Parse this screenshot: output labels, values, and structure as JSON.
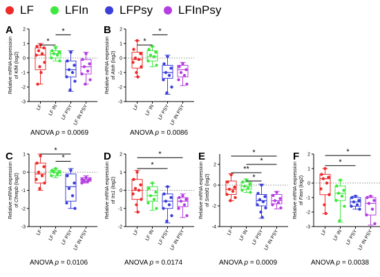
{
  "legend": [
    {
      "label": "LF",
      "color": "#ee2a2a"
    },
    {
      "label": "LFIn",
      "color": "#3fe83f"
    },
    {
      "label": "LFPsy",
      "color": "#3b3fd9"
    },
    {
      "label": "LFInPsy",
      "color": "#b43ee0"
    }
  ],
  "groups": [
    "LF",
    "LF IN",
    "LF PSY",
    "LF IN PSY"
  ],
  "colors": [
    "#ee2a2a",
    "#3fe83f",
    "#3b3fd9",
    "#b43ee0"
  ],
  "chart_data": [
    {
      "type": "box",
      "panel": "A",
      "ylabel_line1": "Relative mRNA expression",
      "ylabel_pre": "of ",
      "gene": "Klf4",
      "ylabel_post": " (log2)",
      "yticks": [
        -3,
        -2,
        -1,
        0,
        1,
        2
      ],
      "ylim": [
        -3,
        2
      ],
      "categories": [
        "LF",
        "LF IN",
        "LF PSY",
        "LF IN PSY"
      ],
      "boxes": [
        {
          "min": -1.8,
          "q1": -0.8,
          "median": 0.2,
          "q3": 0.7,
          "max": 1.0,
          "points": [
            0.9,
            0.8,
            0.7,
            0.5,
            0.3,
            0.2,
            -0.3,
            -0.6,
            -1.0,
            -1.8
          ]
        },
        {
          "min": -0.2,
          "q1": 0.0,
          "median": 0.3,
          "q3": 0.5,
          "max": 0.8,
          "points": [
            0.7,
            0.5,
            0.4,
            0.3,
            0.2,
            0.0,
            -0.2
          ]
        },
        {
          "min": -2.3,
          "q1": -1.3,
          "median": -0.8,
          "q3": -0.2,
          "max": 0.5,
          "points": [
            0.4,
            -0.2,
            -0.5,
            -0.8,
            -1.0,
            -1.3,
            -1.6,
            -2.2
          ]
        },
        {
          "min": -1.8,
          "q1": -1.1,
          "median": -0.6,
          "q3": -0.1,
          "max": 0.4,
          "points": [
            0.3,
            -0.1,
            -0.4,
            -0.6,
            -0.9,
            -1.1,
            -1.5,
            -1.8
          ]
        }
      ],
      "sig": [
        {
          "from": 2,
          "to": 3,
          "label": "*",
          "y": 1.6
        },
        {
          "from": 1,
          "to": 2,
          "label": "*",
          "y": 0.9
        }
      ],
      "anova_p": "0.0069"
    },
    {
      "type": "box",
      "panel": "B",
      "ylabel_line1": "Relative mRNA expression",
      "ylabel_pre": "of ",
      "gene": "Atoh",
      "ylabel_post": " (log2)",
      "yticks": [
        -3,
        -2,
        -1,
        0,
        1,
        2
      ],
      "ylim": [
        -3,
        2
      ],
      "categories": [
        "LF",
        "LF IN",
        "LF PSY",
        "LF IN PSY"
      ],
      "boxes": [
        {
          "min": -1.3,
          "q1": -0.7,
          "median": -0.1,
          "q3": 0.4,
          "max": 1.2,
          "points": [
            1.2,
            0.6,
            0.3,
            0.0,
            -0.1,
            -0.3,
            -0.6,
            -1.0,
            -1.3
          ]
        },
        {
          "min": -0.6,
          "q1": -0.2,
          "median": 0.1,
          "q3": 0.5,
          "max": 0.8,
          "points": [
            0.8,
            0.6,
            0.4,
            0.2,
            0.1,
            -0.2,
            -0.5
          ]
        },
        {
          "min": -2.5,
          "q1": -1.4,
          "median": -1.0,
          "q3": -0.5,
          "max": 0.2,
          "points": [
            0.1,
            -0.4,
            -0.7,
            -1.0,
            -1.2,
            -1.5,
            -2.0,
            -2.4
          ]
        },
        {
          "min": -1.9,
          "q1": -1.3,
          "median": -0.8,
          "q3": -0.5,
          "max": -0.3,
          "points": [
            -0.4,
            -0.6,
            -0.8,
            -1.0,
            -1.2,
            -1.5,
            -1.8
          ]
        }
      ],
      "sig": [
        {
          "from": 2,
          "to": 3,
          "label": "*",
          "y": 1.6
        },
        {
          "from": 1,
          "to": 2,
          "label": "*",
          "y": 0.9
        }
      ],
      "anova_p": "0.0086"
    },
    {
      "type": "box",
      "panel": "C",
      "ylabel_line1": "Relative mRNA expression",
      "ylabel_pre": "of ",
      "gene": "Chrepb",
      "ylabel_post": " (log2)",
      "yticks": [
        -3,
        -2,
        -1,
        0,
        1
      ],
      "ylim": [
        -3,
        1
      ],
      "categories": [
        "LF",
        "LF IN",
        "LF PSY",
        "LF IN PSY"
      ],
      "boxes": [
        {
          "min": -1.0,
          "q1": -0.6,
          "median": -0.1,
          "q3": 0.5,
          "max": 1.0,
          "points": [
            0.9,
            0.5,
            0.3,
            0.0,
            -0.2,
            -0.4,
            -0.6,
            -0.9
          ]
        },
        {
          "min": -0.3,
          "q1": -0.2,
          "median": 0.0,
          "q3": 0.1,
          "max": 0.2,
          "points": [
            0.2,
            0.1,
            0.0,
            0.0,
            -0.1,
            -0.2
          ]
        },
        {
          "min": -2.0,
          "q1": -1.6,
          "median": -0.8,
          "q3": -0.1,
          "max": 0.2,
          "points": [
            0.1,
            -0.2,
            -0.6,
            -0.9,
            -1.3,
            -1.7,
            -2.0
          ]
        },
        {
          "min": -0.6,
          "q1": -0.5,
          "median": -0.4,
          "q3": -0.3,
          "max": -0.2,
          "points": [
            -0.3,
            -0.4,
            -0.4,
            -0.5,
            -0.5,
            -0.6
          ]
        }
      ],
      "sig": [
        {
          "from": 1,
          "to": 3,
          "label": "*",
          "y": 1.0
        },
        {
          "from": 2,
          "to": 3,
          "label": "*",
          "y": 0.6
        }
      ],
      "anova_p": "0.0106"
    },
    {
      "type": "box",
      "panel": "D",
      "ylabel_line1": "Relative mRNA expression",
      "ylabel_pre": "of ",
      "gene": "Irs1",
      "ylabel_post": " (log2)",
      "yticks": [
        -2,
        -1,
        0,
        1,
        2
      ],
      "ylim": [
        -2,
        2
      ],
      "categories": [
        "LF",
        "LF IN",
        "LF PSY",
        "LF IN PSY"
      ],
      "boxes": [
        {
          "min": -1.2,
          "q1": -0.5,
          "median": 0.0,
          "q3": 0.6,
          "max": 1.1,
          "points": [
            1.0,
            0.6,
            0.3,
            0.1,
            0.0,
            -0.2,
            -0.5,
            -0.8,
            -1.2
          ]
        },
        {
          "min": -1.1,
          "q1": -0.6,
          "median": -0.3,
          "q3": 0.2,
          "max": 0.4,
          "points": [
            0.4,
            0.1,
            -0.1,
            -0.3,
            -0.5,
            -0.7,
            -1.0
          ]
        },
        {
          "min": -1.8,
          "q1": -1.0,
          "median": -0.6,
          "q3": -0.2,
          "max": 0.2,
          "points": [
            0.2,
            -0.2,
            -0.4,
            -0.6,
            -0.8,
            -1.0,
            -1.4,
            -1.7
          ]
        },
        {
          "min": -1.5,
          "q1": -0.9,
          "median": -0.6,
          "q3": -0.4,
          "max": -0.2,
          "points": [
            -0.3,
            -0.4,
            -0.5,
            -0.6,
            -0.8,
            -1.0,
            -1.4
          ]
        }
      ],
      "sig": [
        {
          "from": 1,
          "to": 4,
          "label": "*",
          "y": 1.8
        },
        {
          "from": 1,
          "to": 3,
          "label": "*",
          "y": 1.2
        }
      ],
      "anova_p": "0.0174"
    },
    {
      "type": "box",
      "panel": "E",
      "ylabel_line1": "Relative mRNA expression",
      "ylabel_pre": "of ",
      "gene": "Srebf1",
      "ylabel_post": " (log2)",
      "yticks": [
        -4,
        -2,
        0,
        2
      ],
      "ylim": [
        -4,
        3
      ],
      "categories": [
        "LF",
        "LF IN",
        "LF PSY",
        "LF IN PSY"
      ],
      "boxes": [
        {
          "min": -1.5,
          "q1": -0.9,
          "median": -0.4,
          "q3": 0.4,
          "max": 1.1,
          "points": [
            1.0,
            0.3,
            -0.2,
            -0.4,
            -0.6,
            -0.9,
            -1.2,
            -1.5
          ]
        },
        {
          "min": -0.7,
          "q1": -0.4,
          "median": -0.1,
          "q3": 0.3,
          "max": 0.6,
          "points": [
            0.5,
            0.3,
            0.1,
            -0.1,
            -0.3,
            -0.5,
            -0.7
          ]
        },
        {
          "min": -3.2,
          "q1": -2.0,
          "median": -1.5,
          "q3": -0.9,
          "max": 0.1,
          "points": [
            0.0,
            -0.8,
            -1.1,
            -1.4,
            -1.6,
            -1.9,
            -2.2,
            -2.6,
            -3.1
          ]
        },
        {
          "min": -2.3,
          "q1": -1.8,
          "median": -1.5,
          "q3": -0.9,
          "max": -0.6,
          "points": [
            -0.7,
            -1.0,
            -1.3,
            -1.5,
            -1.7,
            -1.9,
            -2.2
          ]
        }
      ],
      "sig": [
        {
          "from": 1,
          "to": 4,
          "label": "*",
          "y": 2.8
        },
        {
          "from": 2,
          "to": 4,
          "label": "*",
          "y": 2.0
        },
        {
          "from": 1,
          "to": 3,
          "label": "**",
          "y": 1.2
        },
        {
          "from": 2,
          "to": 3,
          "label": "*",
          "y": 0.4
        }
      ],
      "anova_p": "0.0009"
    },
    {
      "type": "box",
      "panel": "F",
      "ylabel_line1": "Relative mRNA expression",
      "ylabel_pre": "of ",
      "gene": "Fasn",
      "ylabel_post": " (log2)",
      "yticks": [
        -3,
        -2,
        -1,
        0,
        1,
        2
      ],
      "ylim": [
        -3,
        2
      ],
      "categories": [
        "LF",
        "LF IN",
        "LF PSY",
        "LF IN PSY"
      ],
      "boxes": [
        {
          "min": -2.1,
          "q1": -0.8,
          "median": 0.3,
          "q3": 0.6,
          "max": 1.0,
          "points": [
            1.0,
            0.6,
            0.4,
            0.3,
            0.0,
            -0.4,
            -0.8,
            -1.5,
            -2.1
          ]
        },
        {
          "min": -2.7,
          "q1": -1.2,
          "median": -0.7,
          "q3": -0.2,
          "max": 0.2,
          "points": [
            0.2,
            -0.2,
            -0.5,
            -0.7,
            -0.9,
            -1.2,
            -1.6,
            -2.6
          ]
        },
        {
          "min": -1.8,
          "q1": -1.6,
          "median": -1.3,
          "q3": -1.0,
          "max": -0.9,
          "points": [
            -0.9,
            -1.0,
            -1.2,
            -1.3,
            -1.5,
            -1.6,
            -1.8
          ]
        },
        {
          "min": -2.9,
          "q1": -2.2,
          "median": -1.4,
          "q3": -1.0,
          "max": -0.9,
          "points": [
            -0.9,
            -1.0,
            -1.2,
            -1.4,
            -1.8,
            -2.2,
            -2.8
          ]
        }
      ],
      "sig": [
        {
          "from": 1,
          "to": 4,
          "label": "*",
          "y": 1.9
        },
        {
          "from": 1,
          "to": 3,
          "label": "*",
          "y": 1.2
        }
      ],
      "anova_p": "0.0038"
    }
  ],
  "anova_prefix": "ANOVA ",
  "anova_p_symbol": "p",
  "anova_eq": " = "
}
